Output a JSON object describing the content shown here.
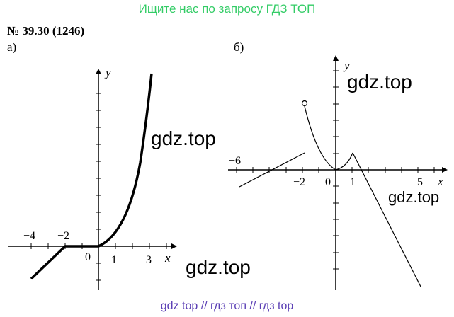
{
  "header": {
    "banner": "Ищите нас по запросу ГДЗ ТОП",
    "task_number": "№ 39.30 (1246)"
  },
  "part_a": {
    "label": "а)",
    "x_axis_label": "x",
    "y_axis_label": "y",
    "tick_labels": [
      "−4",
      "−2",
      "0",
      "1",
      "3"
    ]
  },
  "part_b": {
    "label": "б)",
    "x_axis_label": "x",
    "y_axis_label": "y",
    "tick_labels": [
      "−6",
      "−2",
      "0",
      "1",
      "5"
    ]
  },
  "watermarks": [
    "gdz.top",
    "gdz.top",
    "gdz.top",
    "gdz.top"
  ],
  "footer": {
    "text": "gdz top  //  гдз топ  //  гдз top"
  },
  "colors": {
    "banner": "#33cc66",
    "footer": "#5b3fb5"
  }
}
